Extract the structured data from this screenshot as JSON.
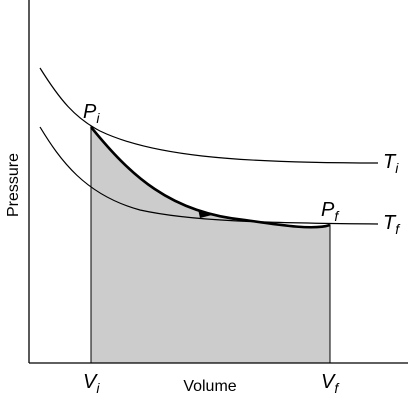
{
  "axes": {
    "y_label": "Pressure",
    "x_label": "Volume"
  },
  "points": {
    "initial": {
      "main": "P",
      "sub": "i"
    },
    "final": {
      "main": "P",
      "sub": "f"
    }
  },
  "isotherms": {
    "hot": {
      "main": "T",
      "sub": "i"
    },
    "cold": {
      "main": "T",
      "sub": "f"
    }
  },
  "volume_ticks": {
    "initial": {
      "main": "V",
      "sub": "i"
    },
    "final": {
      "main": "V",
      "sub": "f"
    }
  },
  "colors": {
    "work_area": "#cccccc",
    "line": "#000000"
  }
}
